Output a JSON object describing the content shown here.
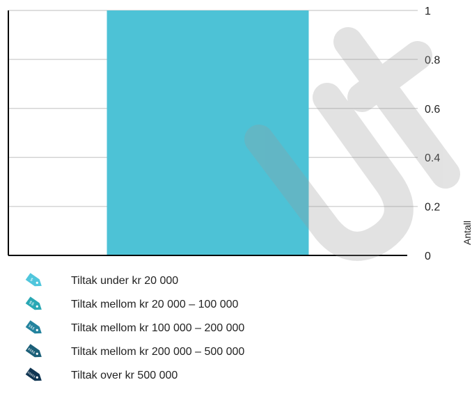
{
  "chart_data": {
    "type": "bar",
    "categories": [
      ""
    ],
    "series": [
      {
        "values": [
          1
        ],
        "color": "#4dc2d6"
      }
    ],
    "ylabel": "Antall",
    "xlabel": "",
    "ylim": [
      0,
      1
    ],
    "yticks": [
      "0",
      "0.2",
      "0.4",
      "0.6",
      "0.8",
      "1"
    ],
    "y_axis_side": "right",
    "grid": true
  },
  "legend": {
    "items": [
      {
        "label": "Tiltak under kr 20 000",
        "icon": "price-tag-icon",
        "symbol": "$",
        "color": "#50c6dc"
      },
      {
        "label": "Tiltak mellom kr 20 000 – 100 000",
        "icon": "price-tag-icon",
        "symbol": "$$",
        "color": "#2aa8b4"
      },
      {
        "label": "Tiltak mellom kr 100 000 – 200 000",
        "icon": "price-tag-icon",
        "symbol": "$$$",
        "color": "#23839e"
      },
      {
        "label": "Tiltak mellom kr 200 000 – 500 000",
        "icon": "price-tag-icon",
        "symbol": "$$$$",
        "color": "#1b5f78"
      },
      {
        "label": "Tiltak over kr 500 000",
        "icon": "price-tag-icon",
        "symbol": "$$$$$",
        "color": "#103552"
      }
    ]
  },
  "watermark": {
    "text": "Utkast",
    "color": "#9a9a9a"
  }
}
